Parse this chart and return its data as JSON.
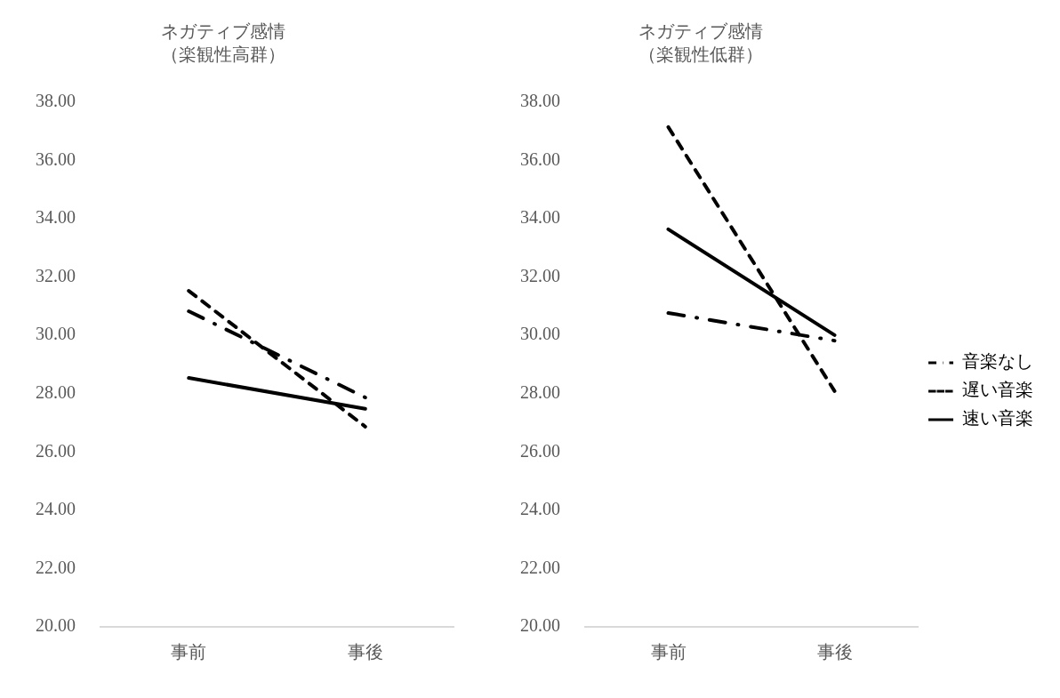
{
  "chart_data": [
    {
      "type": "line",
      "title": "ネガティブ感情（楽観性高群）",
      "categories": [
        "事前",
        "事後"
      ],
      "series": [
        {
          "color": "#000000",
          "line_style": "dashdot",
          "values": [
            30.83,
            27.87
          ]
        },
        {
          "color": "#000000",
          "line_style": "dashed",
          "values": [
            31.53,
            26.87
          ]
        },
        {
          "color": "#000000",
          "line_style": "solid",
          "values": [
            28.54,
            27.48
          ]
        }
      ],
      "ylim": [
        20,
        38
      ],
      "yticks": [
        {
          "value": 20,
          "label": "20.00"
        },
        {
          "value": 22,
          "label": "22.00"
        },
        {
          "value": 24,
          "label": "24.00"
        },
        {
          "value": 26,
          "label": "26.00"
        },
        {
          "value": 28,
          "label": "28.00"
        },
        {
          "value": 30,
          "label": "30.00"
        },
        {
          "value": 32,
          "label": "32.00"
        },
        {
          "value": 34,
          "label": "34.00"
        },
        {
          "value": 36,
          "label": "36.00"
        },
        {
          "value": 38,
          "label": "38.00"
        }
      ],
      "grid": false,
      "legend": false,
      "marker": "none"
    },
    {
      "type": "line",
      "title": "ネガティブ感情（楽観性低群）",
      "categories": [
        "事前",
        "事後"
      ],
      "series": [
        {
          "name": "音楽なし",
          "color": "#000000",
          "line_style": "dashdot",
          "values": [
            30.77,
            29.82
          ]
        },
        {
          "name": "遅い音楽",
          "color": "#000000",
          "line_style": "dashed",
          "values": [
            37.15,
            28.09
          ]
        },
        {
          "name": "速い音楽",
          "color": "#000000",
          "line_style": "solid",
          "values": [
            33.64,
            30.01
          ]
        }
      ],
      "ylim": [
        20,
        38
      ],
      "yticks": [
        {
          "value": 20,
          "label": "20.00"
        },
        {
          "value": 22,
          "label": "22.00"
        },
        {
          "value": 24,
          "label": "24.00"
        },
        {
          "value": 26,
          "label": "26.00"
        },
        {
          "value": 28,
          "label": "28.00"
        },
        {
          "value": 30,
          "label": "30.00"
        },
        {
          "value": 32,
          "label": "32.00"
        },
        {
          "value": 34,
          "label": "34.00"
        },
        {
          "value": 36,
          "label": "36.00"
        },
        {
          "value": 38,
          "label": "38.00"
        }
      ],
      "grid": false,
      "legend": "right",
      "marker": "none"
    }
  ]
}
